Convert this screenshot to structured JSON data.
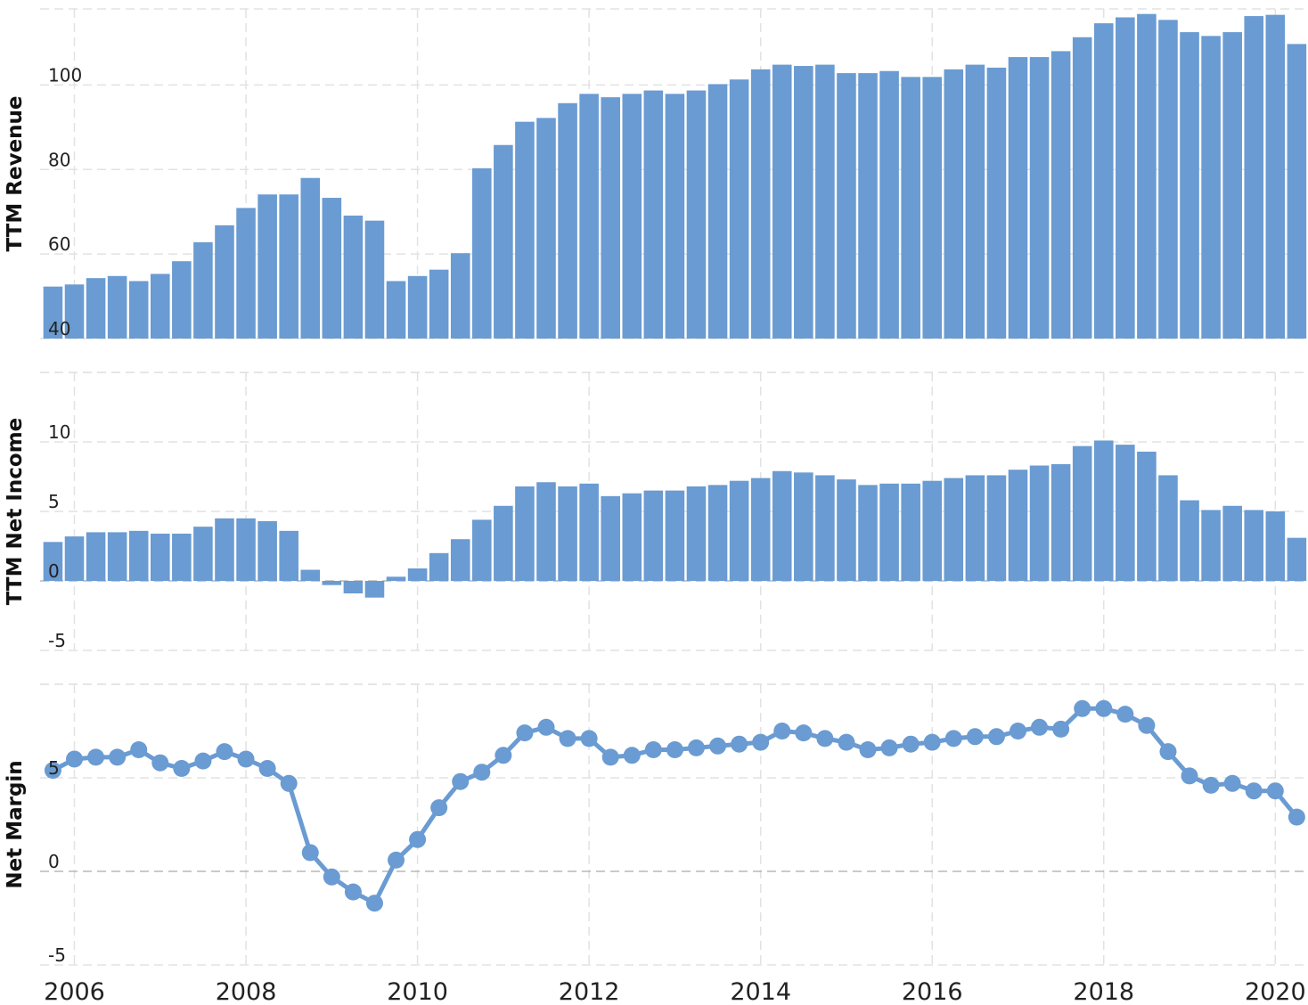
{
  "chart_data": [
    {
      "type": "bar",
      "ylabel": "TTM Revenue",
      "ylim": [
        40,
        118
      ],
      "yticks": [
        "40",
        "60",
        "80",
        "100"
      ],
      "color": "#6a9bd2",
      "values": [
        52.3,
        52.8,
        54.3,
        54.8,
        53.6,
        55.3,
        58.3,
        62.8,
        66.8,
        70.9,
        74.1,
        74.1,
        78.0,
        73.3,
        69.1,
        67.9,
        53.6,
        54.8,
        56.3,
        60.2,
        80.3,
        85.8,
        91.3,
        92.2,
        95.7,
        97.9,
        97.1,
        97.9,
        98.7,
        97.9,
        98.7,
        100.2,
        101.3,
        103.7,
        104.8,
        104.5,
        104.8,
        102.8,
        102.8,
        103.3,
        101.9,
        101.9,
        103.7,
        104.8,
        104.1,
        106.6,
        106.6,
        108.0,
        111.3,
        114.6,
        116.0,
        116.8,
        115.4,
        112.5,
        111.6,
        112.5,
        116.3,
        116.6,
        109.7
      ]
    },
    {
      "type": "bar",
      "ylabel": "TTM Net Income",
      "ylim": [
        -5,
        15
      ],
      "yticks": [
        "-5",
        "0",
        "5",
        "10"
      ],
      "color": "#6a9bd2",
      "values": [
        2.8,
        3.2,
        3.5,
        3.5,
        3.6,
        3.4,
        3.4,
        3.9,
        4.5,
        4.5,
        4.3,
        3.6,
        0.8,
        -0.3,
        -0.9,
        -1.2,
        0.3,
        0.9,
        2.0,
        3.0,
        4.4,
        5.4,
        6.8,
        7.1,
        6.8,
        7.0,
        6.1,
        6.3,
        6.5,
        6.5,
        6.8,
        6.9,
        7.2,
        7.4,
        7.9,
        7.8,
        7.6,
        7.3,
        6.9,
        7.0,
        7.0,
        7.2,
        7.4,
        7.6,
        7.6,
        8.0,
        8.3,
        8.4,
        9.7,
        10.1,
        9.8,
        9.3,
        7.6,
        5.8,
        5.1,
        5.4,
        5.1,
        5.0,
        3.1
      ]
    },
    {
      "type": "line",
      "ylabel": "Net Margin",
      "ylim": [
        -5,
        10
      ],
      "yticks": [
        "-5",
        "0",
        "5"
      ],
      "color": "#6a9bd2",
      "values": [
        5.4,
        6.0,
        6.1,
        6.1,
        6.5,
        5.8,
        5.5,
        5.9,
        6.4,
        6.0,
        5.5,
        4.7,
        1.0,
        -0.3,
        -1.1,
        -1.7,
        0.6,
        1.7,
        3.4,
        4.8,
        5.3,
        6.2,
        7.4,
        7.7,
        7.1,
        7.1,
        6.1,
        6.2,
        6.5,
        6.5,
        6.6,
        6.7,
        6.8,
        6.9,
        7.5,
        7.4,
        7.1,
        6.9,
        6.5,
        6.6,
        6.8,
        6.9,
        7.1,
        7.2,
        7.2,
        7.5,
        7.7,
        7.6,
        8.7,
        8.7,
        8.4,
        7.8,
        6.4,
        5.1,
        4.6,
        4.7,
        4.3,
        4.3,
        2.9
      ]
    }
  ],
  "x_axis": {
    "start_year": 2005.75,
    "step_years": 0.25,
    "min": 2005.6,
    "max": 2020.35,
    "ticks": [
      "2006",
      "2008",
      "2010",
      "2012",
      "2014",
      "2016",
      "2018",
      "2020"
    ]
  },
  "colors": {
    "bar": "#6a9bd2",
    "line": "#6a9bd2",
    "grid": "#e2e2e2"
  }
}
